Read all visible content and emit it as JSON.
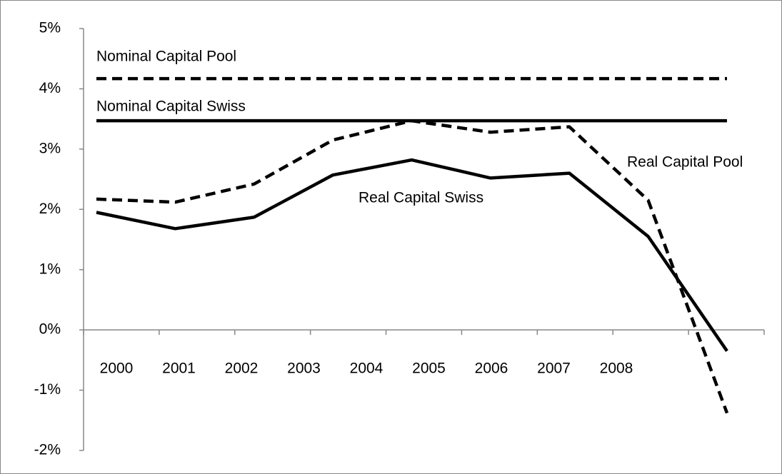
{
  "chart_data": {
    "type": "line",
    "categories": [
      "2000",
      "2001",
      "2002",
      "2003",
      "2004",
      "2005",
      "2006",
      "2007",
      "2008"
    ],
    "series": [
      {
        "name": "Nominal Capital Pool",
        "color": "#000000",
        "dash": true,
        "values": [
          4.17,
          4.17,
          4.17,
          4.17,
          4.17,
          4.17,
          4.17,
          4.17,
          4.17
        ]
      },
      {
        "name": "Nominal Capital Swiss",
        "color": "#000000",
        "dash": false,
        "values": [
          3.47,
          3.47,
          3.47,
          3.47,
          3.47,
          3.47,
          3.47,
          3.47,
          3.47
        ]
      },
      {
        "name": "Real Capital Pool",
        "color": "#000000",
        "dash": true,
        "values": [
          2.17,
          2.12,
          2.42,
          3.15,
          3.47,
          3.28,
          3.37,
          2.15,
          -1.38
        ]
      },
      {
        "name": "Real Capital Swiss",
        "color": "#000000",
        "dash": false,
        "values": [
          1.95,
          1.68,
          1.87,
          2.57,
          2.82,
          2.52,
          2.6,
          1.55,
          -0.35
        ]
      }
    ],
    "ylim": [
      -2,
      5
    ],
    "yticks": [
      {
        "value": -2,
        "label": "-2%"
      },
      {
        "value": -1,
        "label": "-1%"
      },
      {
        "value": 0,
        "label": "0%"
      },
      {
        "value": 1,
        "label": "1%"
      },
      {
        "value": 2,
        "label": "2%"
      },
      {
        "value": 3,
        "label": "3%"
      },
      {
        "value": 4,
        "label": "4%"
      },
      {
        "value": 5,
        "label": "5%"
      }
    ],
    "grid": false
  }
}
